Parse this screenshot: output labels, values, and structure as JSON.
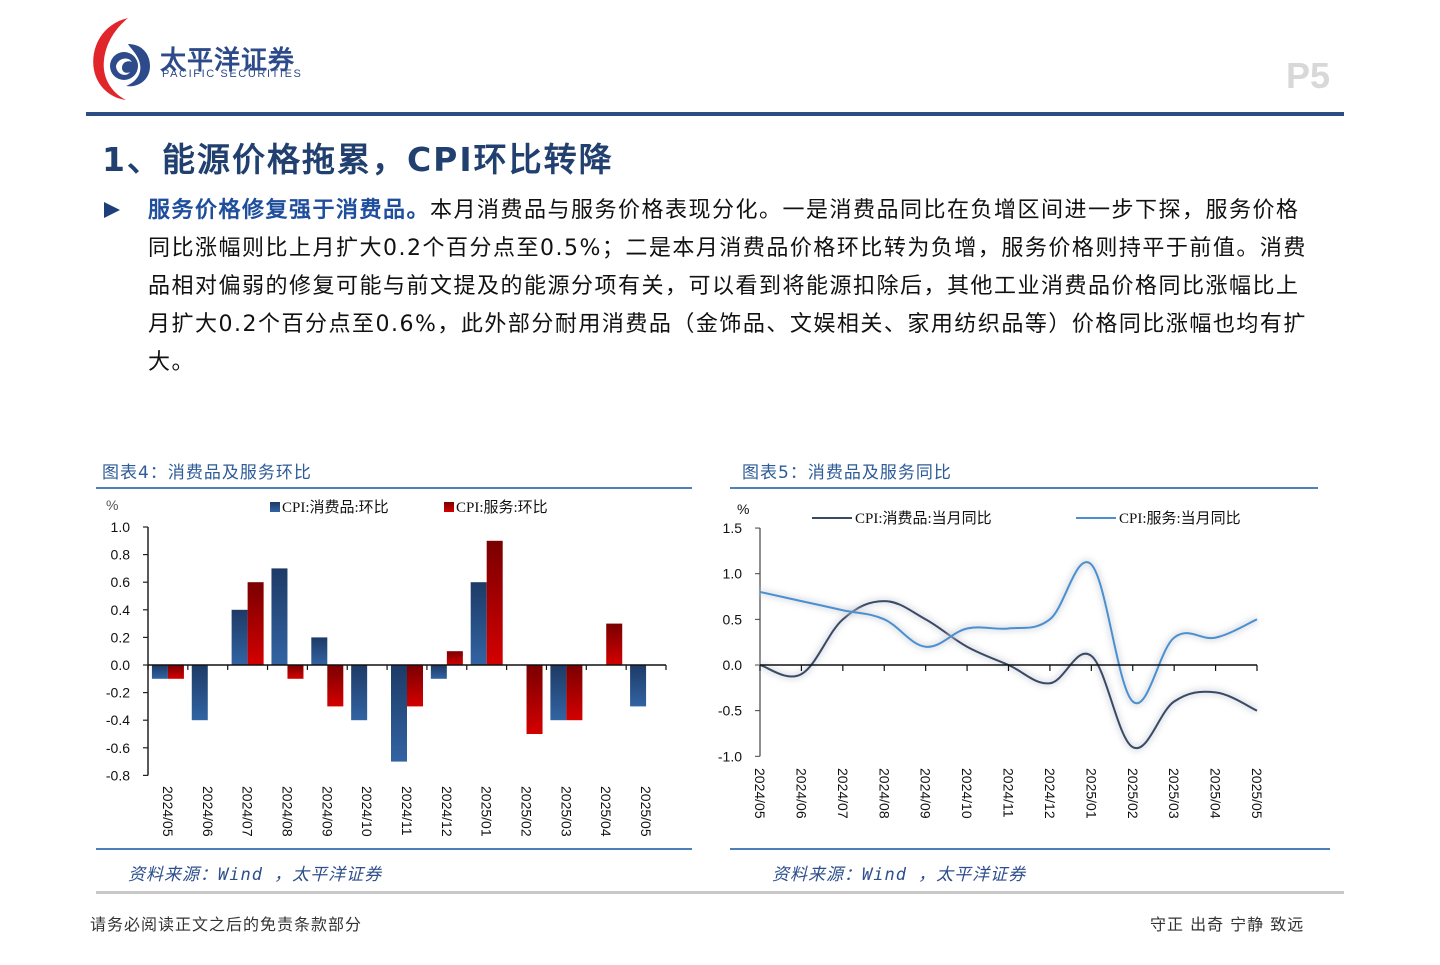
{
  "header": {
    "logo_cn": "太平洋证券",
    "logo_en": "PACIFIC SECURITIES",
    "page_number": "P5",
    "colors": {
      "brand_blue": "#2b4d84",
      "brand_red": "#e0262b"
    }
  },
  "section": {
    "title": "1、能源价格拖累，CPI环比转降"
  },
  "body": {
    "lead": "服务价格修复强于消费品。",
    "text": "本月消费品与服务价格表现分化。一是消费品同比在负增区间进一步下探，服务价格同比涨幅则比上月扩大0.2个百分点至0.5%；二是本月消费品价格环比转为负增，服务价格则持平于前值。消费品相对偏弱的修复可能与前文提及的能源分项有关，可以看到将能源扣除后，其他工业消费品价格同比涨幅比上月扩大0.2个百分点至0.6%，此外部分耐用消费品（金饰品、文娱相关、家用纺织品等）价格同比涨幅也均有扩大。"
  },
  "figures": {
    "left": {
      "title": "图表4：消费品及服务环比",
      "source": "资料来源：Wind ，太平洋证券"
    },
    "right": {
      "title": "图表5：消费品及服务同比",
      "source": "资料来源：Wind ，太平洋证券"
    }
  },
  "chart_data": [
    {
      "type": "bar",
      "title": "图表4：消费品及服务环比",
      "ylabel": "%",
      "xlabel": "",
      "ylim": [
        -0.8,
        1.0
      ],
      "yticks": [
        1.0,
        0.8,
        0.6,
        0.4,
        0.2,
        0.0,
        -0.2,
        -0.4,
        -0.6,
        -0.8
      ],
      "ytick_labels": [
        "1.0",
        "0.8",
        "0.6",
        "0.4",
        "0.2",
        "0.0",
        "-0.2",
        "-0.4",
        "-0.6",
        "-0.8"
      ],
      "grid": false,
      "legend_position": "top",
      "categories": [
        "2024/05",
        "2024/06",
        "2024/07",
        "2024/08",
        "2024/09",
        "2024/10",
        "2024/11",
        "2024/12",
        "2025/01",
        "2025/02",
        "2025/03",
        "2025/04",
        "2025/05"
      ],
      "series": [
        {
          "name": "CPI:消费品:环比",
          "color": "#2b5a94",
          "values": [
            -0.1,
            -0.4,
            0.4,
            0.7,
            0.2,
            -0.4,
            -0.7,
            -0.1,
            0.6,
            0.0,
            -0.4,
            0.0,
            -0.3
          ]
        },
        {
          "name": "CPI:服务:环比",
          "color": "#c00000",
          "values": [
            -0.1,
            0.0,
            0.6,
            -0.1,
            -0.3,
            0.0,
            -0.3,
            0.1,
            0.9,
            -0.5,
            -0.4,
            0.3,
            0.0
          ]
        }
      ]
    },
    {
      "type": "line",
      "title": "图表5：消费品及服务同比",
      "ylabel": "%",
      "xlabel": "",
      "ylim": [
        -1.0,
        1.5
      ],
      "yticks": [
        1.5,
        1.0,
        0.5,
        0.0,
        -0.5,
        -1.0
      ],
      "ytick_labels": [
        "1.5",
        "1.0",
        "0.5",
        "0.0",
        "-0.5",
        "-1.0"
      ],
      "grid": false,
      "legend_position": "top",
      "categories": [
        "2024/05",
        "2024/06",
        "2024/07",
        "2024/08",
        "2024/09",
        "2024/10",
        "2024/11",
        "2024/12",
        "2025/01",
        "2025/02",
        "2025/03",
        "2025/04",
        "2025/05"
      ],
      "series": [
        {
          "name": "CPI:消费品:当月同比",
          "color": "#3a4a66",
          "values": [
            0.0,
            -0.1,
            0.5,
            0.7,
            0.5,
            0.2,
            0.0,
            -0.2,
            0.1,
            -0.9,
            -0.4,
            -0.3,
            -0.5
          ]
        },
        {
          "name": "CPI:服务:当月同比",
          "color": "#4a90d0",
          "values": [
            0.8,
            0.7,
            0.6,
            0.5,
            0.2,
            0.4,
            0.4,
            0.5,
            1.1,
            -0.4,
            0.3,
            0.3,
            0.5
          ]
        }
      ]
    }
  ],
  "footer": {
    "disclaimer": "请务必阅读正文之后的免责条款部分",
    "motto": "守正 出奇 宁静 致远"
  }
}
